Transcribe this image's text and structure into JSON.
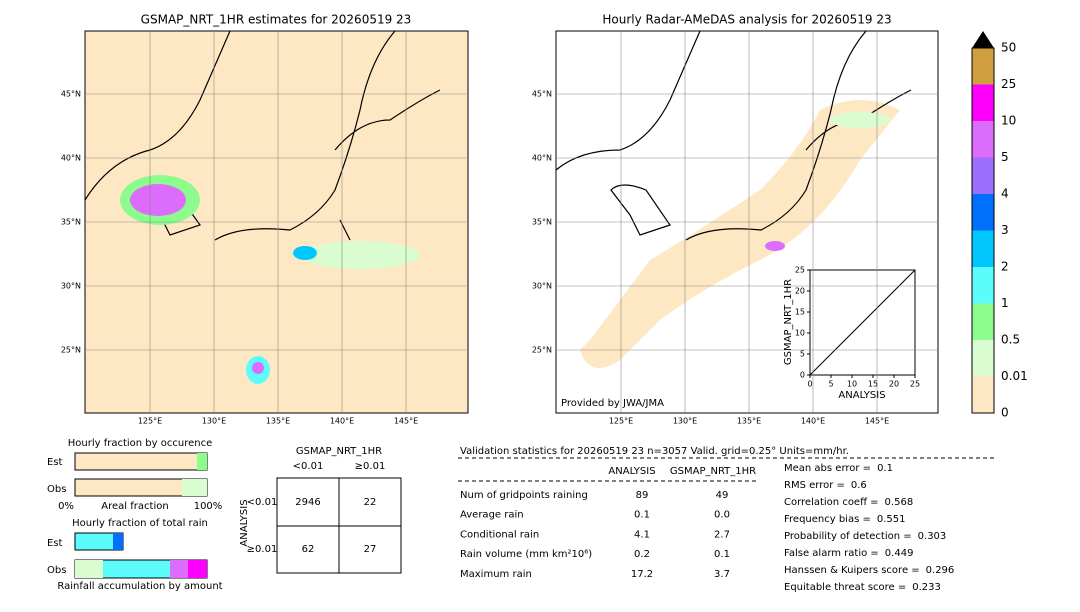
{
  "left_map": {
    "title": "GSMAP_NRT_1HR estimates for 20260519 23",
    "lat_labels": [
      "45°N",
      "40°N",
      "35°N",
      "30°N",
      "25°N"
    ],
    "lon_labels": [
      "125°E",
      "130°E",
      "135°E",
      "140°E",
      "145°E"
    ]
  },
  "right_map": {
    "title": "Hourly Radar-AMeDAS analysis for 20260519 23",
    "lat_labels": [
      "45°N",
      "40°N",
      "35°N",
      "30°N",
      "25°N"
    ],
    "lon_labels": [
      "125°E",
      "130°E",
      "135°E",
      "140°E",
      "145°E"
    ],
    "credit": "Provided by JWA/JMA"
  },
  "scatter": {
    "ylabel": "GSMAP_NRT_1HR",
    "xlabel": "ANALYSIS",
    "lim": [
      0,
      25
    ],
    "ticks": [
      0,
      5,
      10,
      15,
      20,
      25
    ]
  },
  "colorbar": {
    "labels": [
      "0",
      "0.01",
      "0.5",
      "1",
      "2",
      "3",
      "4",
      "5",
      "10",
      "25",
      "50"
    ],
    "colors": [
      "#fee8c4",
      "#d9fcd0",
      "#8cfc8c",
      "#5cfcfc",
      "#00c8fc",
      "#0070fc",
      "#9c70fc",
      "#dc6cfc",
      "#fc00fc",
      "#d0a040"
    ]
  },
  "fraction_occurrence": {
    "title": "Hourly fraction by occurence",
    "rows": [
      "Est",
      "Obs"
    ],
    "axis_left": "0%",
    "axis_mid": "Areal fraction",
    "axis_right": "100%"
  },
  "fraction_total": {
    "title": "Hourly fraction of total rain",
    "rows": [
      "Est",
      "Obs"
    ],
    "footer": "Rainfall accumulation by amount"
  },
  "contingency": {
    "col_title": "GSMAP_NRT_1HR",
    "cols": [
      "<0.01",
      "≥0.01"
    ],
    "row_title": "ANALYSIS",
    "rows": [
      "<0.01",
      "≥0.01"
    ],
    "cells": [
      [
        2946,
        22
      ],
      [
        62,
        27
      ]
    ]
  },
  "validation": {
    "header": "Validation statistics for 20260519 23  n=3057 Valid. grid=0.25° Units=mm/hr.",
    "columns": [
      "ANALYSIS",
      "GSMAP_NRT_1HR"
    ],
    "rows": [
      {
        "label": "Num of gridpoints raining",
        "values": [
          89,
          49
        ]
      },
      {
        "label": "Average rain",
        "values": [
          0.1,
          "0.0"
        ]
      },
      {
        "label": "Conditional rain",
        "values": [
          4.1,
          2.7
        ]
      },
      {
        "label": "Rain volume (mm km²10⁶)",
        "values": [
          0.2,
          0.1
        ]
      },
      {
        "label": "Maximum rain",
        "values": [
          17.2,
          3.7
        ]
      }
    ],
    "scores": [
      {
        "label": "Mean abs error =",
        "value": 0.1
      },
      {
        "label": "RMS error =",
        "value": 0.6
      },
      {
        "label": "Correlation coeff =",
        "value": 0.568
      },
      {
        "label": "Frequency bias =",
        "value": 0.551
      },
      {
        "label": "Probability of detection =",
        "value": 0.303
      },
      {
        "label": "False alarm ratio =",
        "value": 0.449
      },
      {
        "label": "Hanssen & Kuipers score =",
        "value": 0.296
      },
      {
        "label": "Equitable threat score =",
        "value": 0.233
      }
    ]
  }
}
